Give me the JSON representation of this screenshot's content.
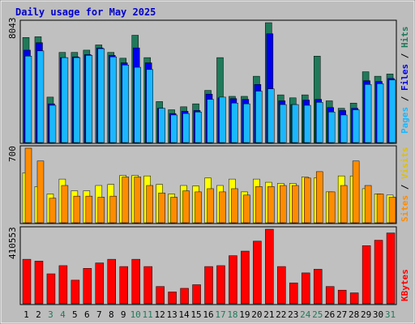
{
  "title": "Daily usage for May 2025",
  "colors": {
    "frame": "#bdbdbd",
    "title": "#0000cc",
    "hits": "#1f7a5a",
    "files": "#0000ee",
    "pages": "#1ab7ff",
    "visits": "#ffff00",
    "sites": "#ff8c00",
    "kbytes": "#ff0000",
    "weekend_label": "#1f7a5a",
    "weekday_label": "#000000"
  },
  "chart_data": [
    {
      "type": "bar",
      "panel": "top",
      "max_label": "8043",
      "ylim": [
        0,
        8043
      ],
      "categories": [
        "1",
        "2",
        "3",
        "4",
        "5",
        "6",
        "7",
        "8",
        "9",
        "10",
        "11",
        "12",
        "13",
        "14",
        "15",
        "16",
        "17",
        "18",
        "19",
        "20",
        "21",
        "22",
        "23",
        "24",
        "25",
        "26",
        "27",
        "28",
        "29",
        "30",
        "31"
      ],
      "weekend_days": [
        "3",
        "4",
        "10",
        "11",
        "17",
        "18",
        "24",
        "25",
        "31"
      ],
      "legend": [
        "Pages",
        "Files",
        "Hits"
      ],
      "series": [
        {
          "name": "Hits",
          "values": [
            7050,
            7100,
            3050,
            6050,
            6050,
            6200,
            6550,
            6050,
            5660,
            7200,
            5700,
            2750,
            2200,
            2400,
            2600,
            3500,
            5700,
            3100,
            3100,
            4450,
            8043,
            3200,
            3000,
            3200,
            5800,
            2800,
            2300,
            2650,
            4750,
            4450,
            4600
          ]
        },
        {
          "name": "Files",
          "values": [
            6200,
            6700,
            2600,
            5700,
            5750,
            5900,
            6350,
            5850,
            5350,
            6350,
            5350,
            2300,
            1950,
            2100,
            2150,
            3250,
            3000,
            2950,
            2900,
            3900,
            7300,
            2800,
            2550,
            2850,
            2900,
            2350,
            2150,
            2300,
            4150,
            4100,
            4300
          ]
        },
        {
          "name": "Pages",
          "values": [
            5800,
            6150,
            2500,
            5700,
            5700,
            5850,
            6300,
            5750,
            5200,
            5050,
            4900,
            2300,
            1850,
            1950,
            2050,
            2900,
            3050,
            2650,
            2600,
            3450,
            3600,
            2550,
            2550,
            2500,
            2700,
            2050,
            1850,
            2200,
            3900,
            3950,
            4200
          ]
        }
      ]
    },
    {
      "type": "bar",
      "panel": "middle",
      "max_label": "700",
      "ylim": [
        0,
        700
      ],
      "categories": [
        "1",
        "2",
        "3",
        "4",
        "5",
        "6",
        "7",
        "8",
        "9",
        "10",
        "11",
        "12",
        "13",
        "14",
        "15",
        "16",
        "17",
        "18",
        "19",
        "20",
        "21",
        "22",
        "23",
        "24",
        "25",
        "26",
        "27",
        "28",
        "29",
        "30",
        "31"
      ],
      "legend": [
        "Sites",
        "Visits"
      ],
      "series": [
        {
          "name": "Visits",
          "values": [
            470,
            340,
            270,
            410,
            300,
            300,
            350,
            360,
            445,
            445,
            440,
            360,
            270,
            350,
            345,
            420,
            350,
            410,
            290,
            410,
            380,
            370,
            370,
            430,
            420,
            290,
            440,
            440,
            320,
            270,
            260
          ]
        },
        {
          "name": "Sites",
          "values": [
            700,
            580,
            230,
            350,
            250,
            250,
            240,
            250,
            430,
            430,
            350,
            280,
            240,
            300,
            290,
            320,
            290,
            320,
            260,
            340,
            340,
            350,
            350,
            420,
            480,
            290,
            350,
            580,
            350,
            270,
            240
          ]
        }
      ]
    },
    {
      "type": "bar",
      "panel": "bottom",
      "max_label": "410553",
      "ylim": [
        0,
        410553
      ],
      "categories": [
        "1",
        "2",
        "3",
        "4",
        "5",
        "6",
        "7",
        "8",
        "9",
        "10",
        "11",
        "12",
        "13",
        "14",
        "15",
        "16",
        "17",
        "18",
        "19",
        "20",
        "21",
        "22",
        "23",
        "24",
        "25",
        "26",
        "27",
        "28",
        "29",
        "30",
        "31"
      ],
      "legend": [
        "KBytes"
      ],
      "series": [
        {
          "name": "KBytes",
          "values": [
            245000,
            235000,
            165000,
            210000,
            130000,
            195000,
            225000,
            245000,
            205000,
            245000,
            205000,
            95000,
            65000,
            85000,
            105000,
            205000,
            210000,
            265000,
            290000,
            345000,
            410553,
            205000,
            115000,
            170000,
            190000,
            95000,
            75000,
            60000,
            320000,
            350000,
            390000
          ]
        }
      ]
    }
  ]
}
